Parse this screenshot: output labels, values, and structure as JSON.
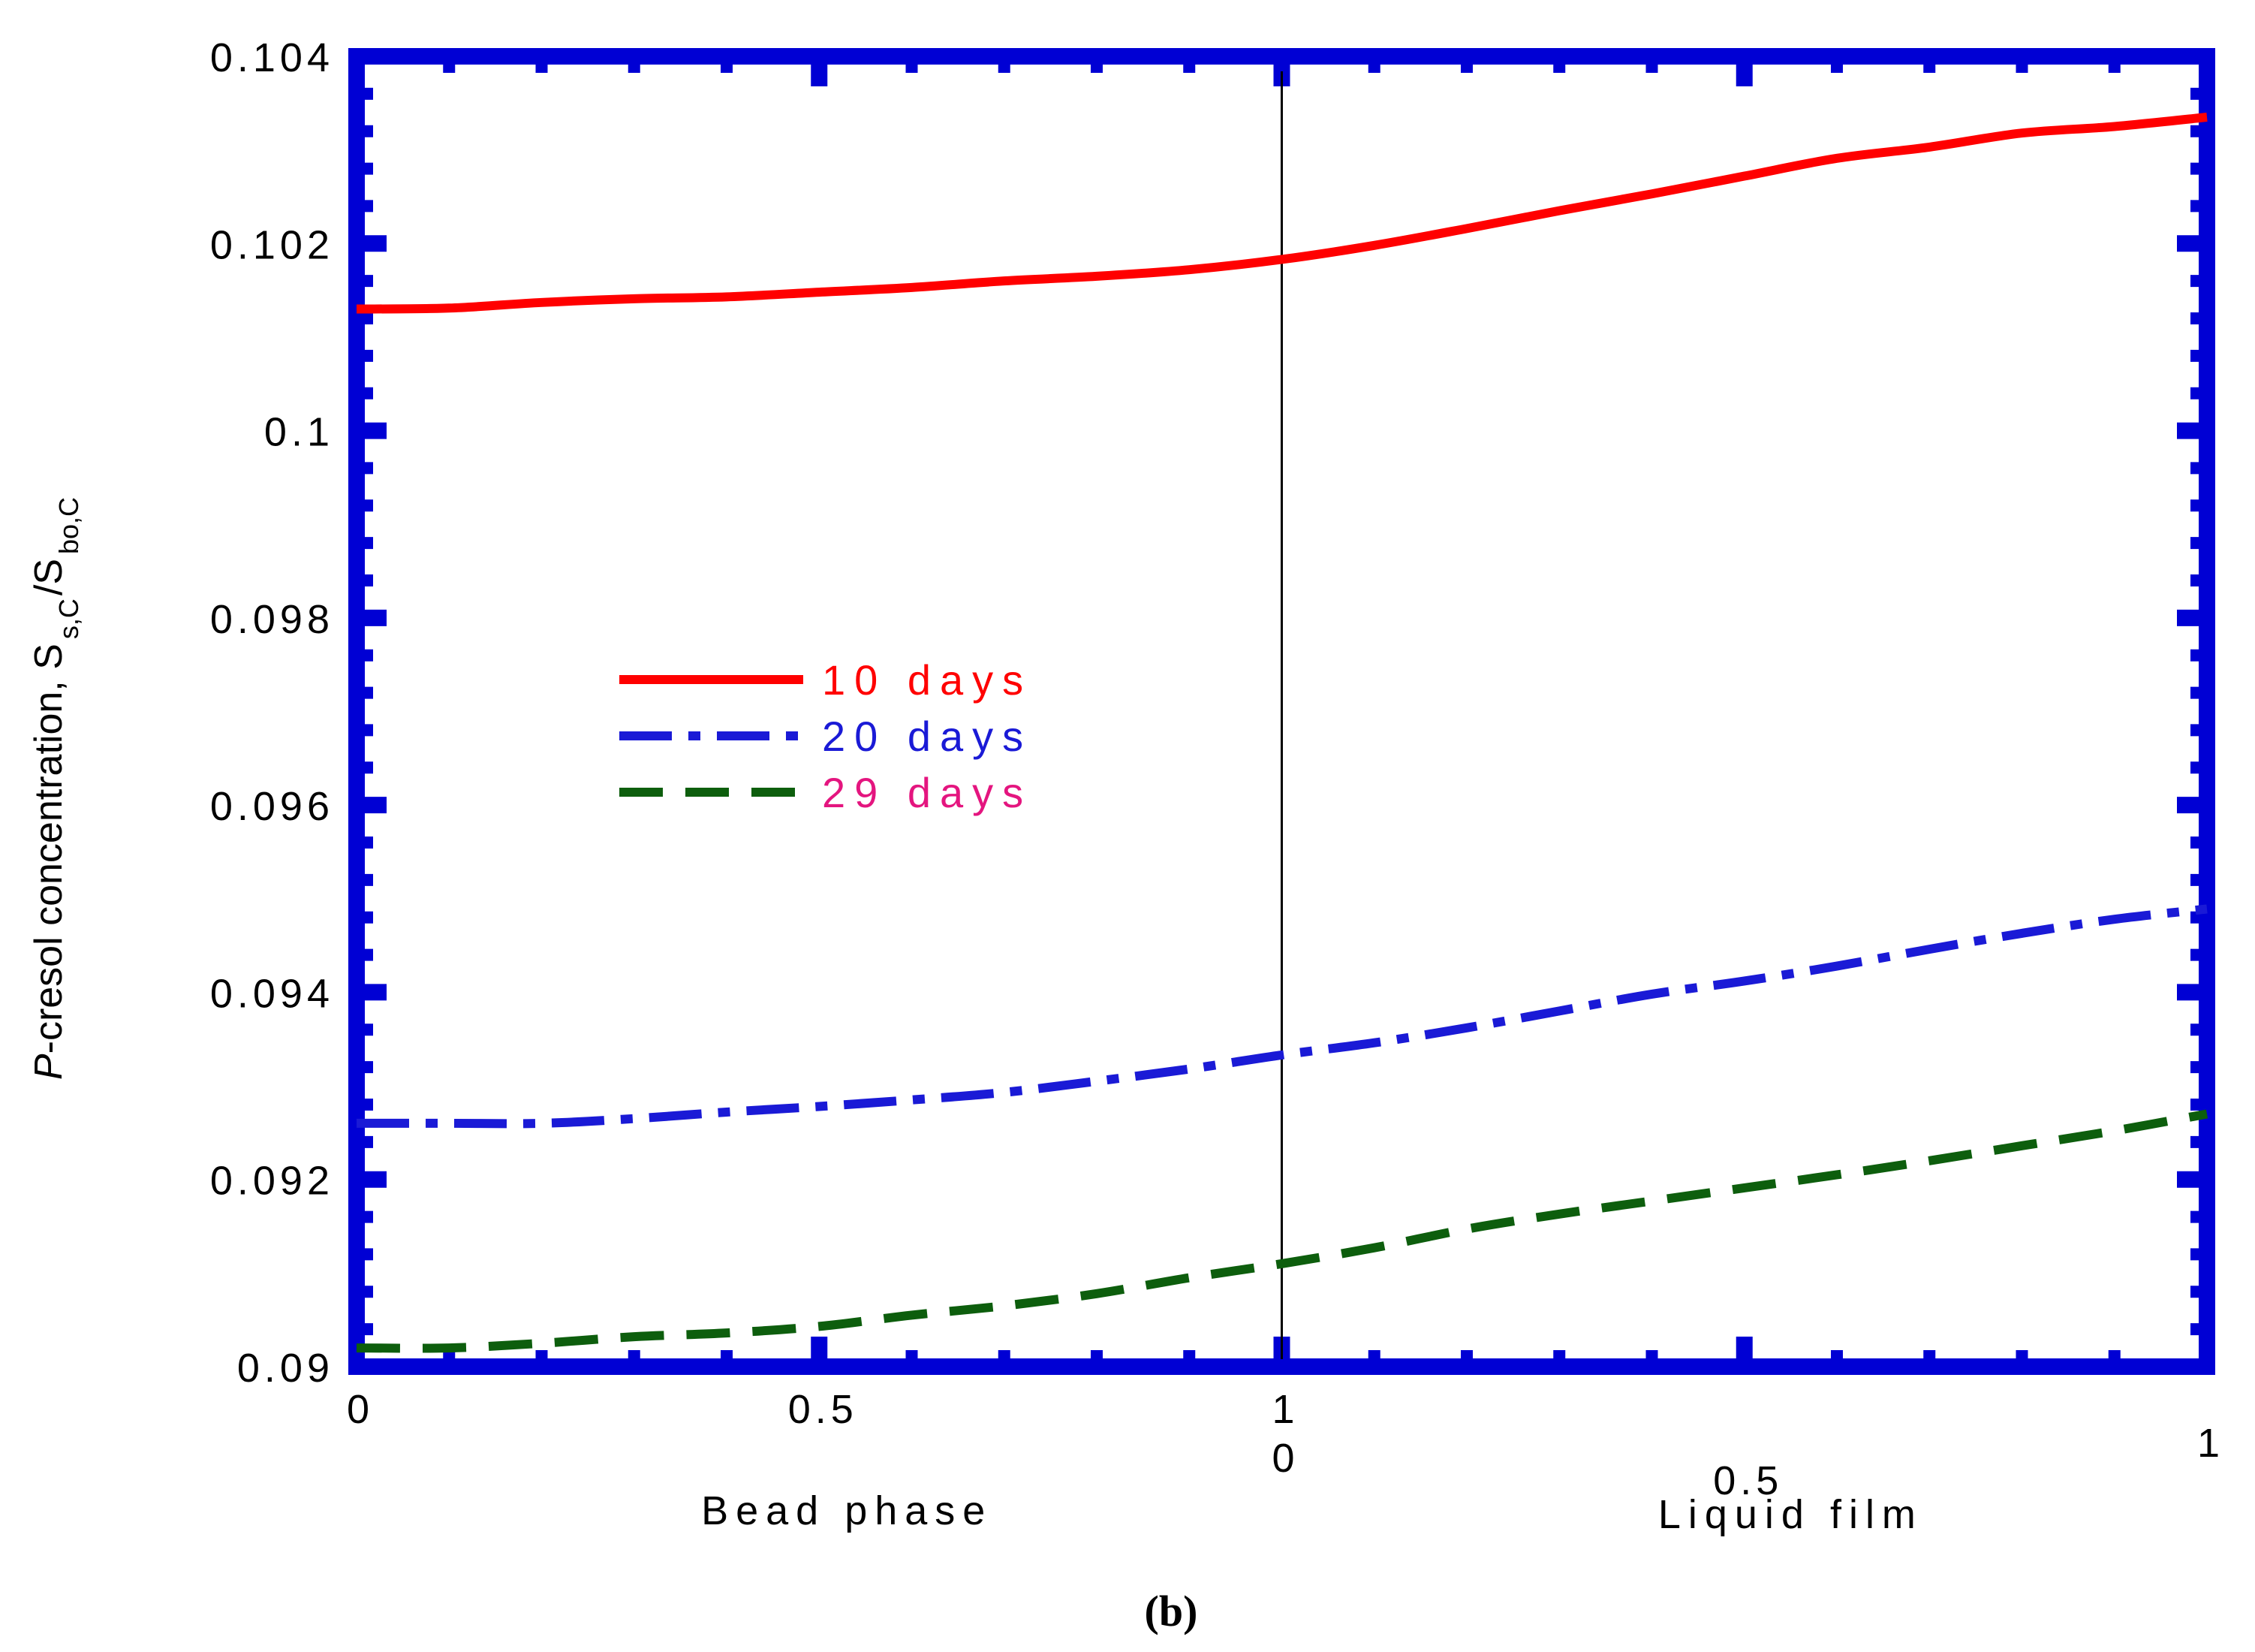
{
  "chart_data": {
    "type": "line",
    "title": "",
    "ylabel": {
      "main": "P-cresol concentration, S",
      "italic_prefix": "P",
      "main_rest": "-cresol concentration, S",
      "sub1": "s,C",
      "slash": "/S",
      "sub2": "bo,C"
    },
    "ylim": [
      0.09,
      0.104
    ],
    "yticks": [
      "0.09",
      "0.092",
      "0.094",
      "0.096",
      "0.098",
      "0.1",
      "0.102",
      "0.104"
    ],
    "ytick_values": [
      0.09,
      0.092,
      0.094,
      0.096,
      0.098,
      0.1,
      0.102,
      0.104
    ],
    "x_layout": {
      "left_region": {
        "name": "Bead phase",
        "xlim": [
          0,
          1
        ],
        "ticks": [
          "0",
          "0.5",
          "1"
        ],
        "tick_values": [
          0,
          0.5,
          1
        ]
      },
      "right_region": {
        "name": "Liquid film",
        "xlim": [
          0,
          1
        ],
        "ticks": [
          "0",
          "0.5",
          "1"
        ],
        "tick_values": [
          0,
          0.5,
          1
        ]
      }
    },
    "x": [
      0,
      0.1,
      0.2,
      0.3,
      0.4,
      0.5,
      0.6,
      0.7,
      0.8,
      0.9,
      1.0,
      1.1,
      1.2,
      1.3,
      1.4,
      1.5,
      1.6,
      1.7,
      1.8,
      1.9,
      2.0
    ],
    "series": [
      {
        "name": "10 days",
        "color": "#ff0000",
        "label_color": "#ff0000",
        "dash": "solid",
        "values": [
          0.1013,
          0.10131,
          0.10137,
          0.10141,
          0.10143,
          0.10148,
          0.10153,
          0.1016,
          0.10165,
          0.10172,
          0.10183,
          0.10198,
          0.10216,
          0.10235,
          0.10253,
          0.10272,
          0.10291,
          0.10303,
          0.10318,
          0.10325,
          0.10335
        ]
      },
      {
        "name": "20 days",
        "color": "#1a1ad6",
        "label_color": "#1a1ad6",
        "dash": "long-dash-dot",
        "values": [
          0.0926,
          0.0926,
          0.0926,
          0.09265,
          0.09272,
          0.09278,
          0.09285,
          0.09293,
          0.09305,
          0.09318,
          0.09333,
          0.09346,
          0.09362,
          0.0938,
          0.09398,
          0.09412,
          0.09428,
          0.09446,
          0.09463,
          0.09478,
          0.09489
        ]
      },
      {
        "name": "29 days",
        "color": "#0d5e0d",
        "label_color": "#e4157f",
        "dash": "dashed",
        "values": [
          0.0902,
          0.0902,
          0.09025,
          0.09032,
          0.09036,
          0.09043,
          0.09055,
          0.09065,
          0.09078,
          0.09095,
          0.0911,
          0.09127,
          0.09147,
          0.09163,
          0.09177,
          0.09191,
          0.09205,
          0.0922,
          0.09236,
          0.09252,
          0.0927
        ]
      }
    ],
    "divider_at_x": 1.0,
    "legend_position": "center-left",
    "grid": false,
    "frame_color": "#0000d4",
    "caption": "(b)"
  }
}
